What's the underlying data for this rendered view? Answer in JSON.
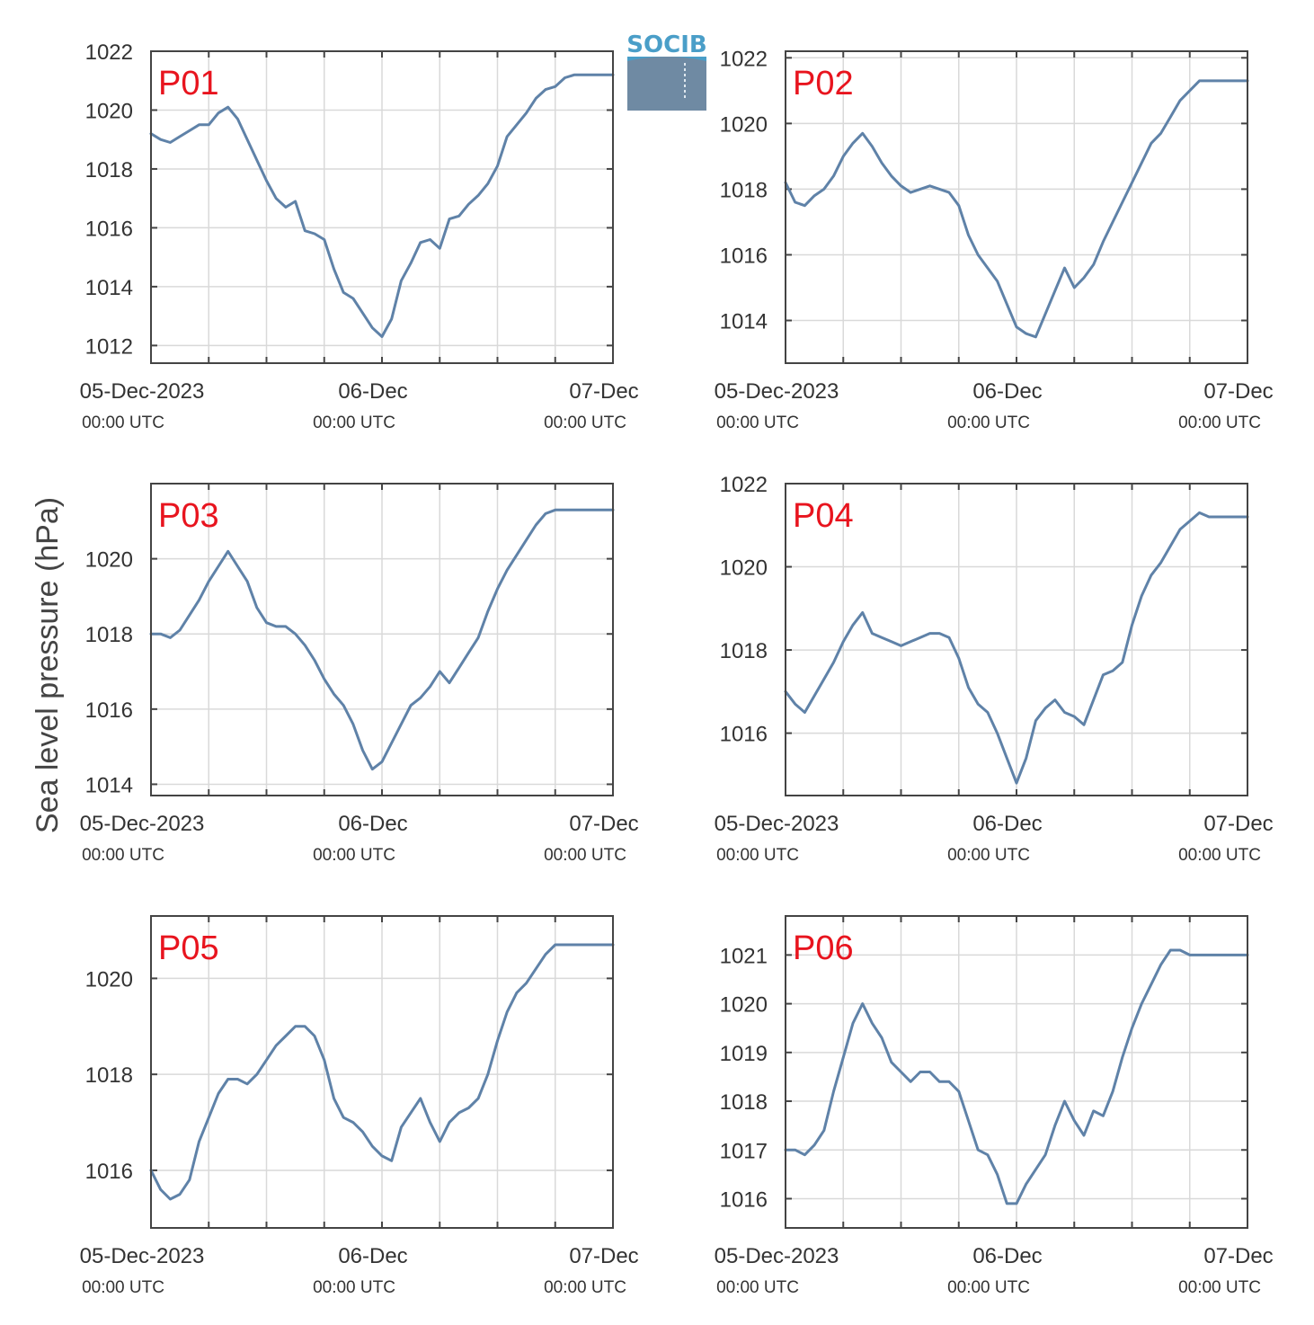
{
  "figure": {
    "ylabel": "Sea level pressure (hPa)",
    "logo_text": "SOCIB",
    "x_tick_labels": [
      "05-Dec-2023",
      "06-Dec",
      "07-Dec"
    ],
    "x_tick_sublabels": [
      "00:00 UTC",
      "00:00 UTC",
      "00:00 UTC"
    ]
  },
  "colors": {
    "line": "#5f82a8",
    "panel_label": "#e8141e",
    "grid": "#d9d9d9",
    "axis": "#444444",
    "logo_text": "#4a9ec8"
  },
  "chart_data": [
    {
      "type": "line",
      "name": "P01",
      "xlim": [
        0,
        48
      ],
      "ylim": [
        1011.4,
        1022
      ],
      "yticks": [
        1012,
        1014,
        1016,
        1018,
        1020,
        1022
      ],
      "x": [
        0,
        1,
        2,
        3,
        4,
        5,
        6,
        7,
        8,
        9,
        10,
        11,
        12,
        13,
        14,
        15,
        16,
        17,
        18,
        19,
        20,
        21,
        22,
        23,
        24,
        25,
        26,
        27,
        28,
        29,
        30,
        31,
        32,
        33,
        34,
        35,
        36,
        37,
        38,
        39,
        40,
        41,
        42,
        43,
        44,
        45,
        46,
        47,
        48
      ],
      "values": [
        1019.2,
        1019.0,
        1018.9,
        1019.1,
        1019.3,
        1019.5,
        1019.5,
        1019.9,
        1020.1,
        1019.7,
        1019.0,
        1018.3,
        1017.6,
        1017.0,
        1016.7,
        1016.9,
        1015.9,
        1015.8,
        1015.6,
        1014.6,
        1013.8,
        1013.6,
        1013.1,
        1012.6,
        1012.3,
        1012.9,
        1014.2,
        1014.8,
        1015.5,
        1015.6,
        1015.3,
        1016.3,
        1016.4,
        1016.8,
        1017.1,
        1017.5,
        1018.1,
        1019.1,
        1019.5,
        1019.9,
        1020.4,
        1020.7,
        1020.8,
        1021.1,
        1021.2,
        1021.2,
        1021.2,
        1021.2,
        1021.2
      ]
    },
    {
      "type": "line",
      "name": "P02",
      "xlim": [
        0,
        48
      ],
      "ylim": [
        1012.7,
        1022.2
      ],
      "yticks": [
        1014,
        1016,
        1018,
        1020,
        1022
      ],
      "x": [
        0,
        1,
        2,
        3,
        4,
        5,
        6,
        7,
        8,
        9,
        10,
        11,
        12,
        13,
        14,
        15,
        16,
        17,
        18,
        19,
        20,
        21,
        22,
        23,
        24,
        25,
        26,
        27,
        28,
        29,
        30,
        31,
        32,
        33,
        34,
        35,
        36,
        37,
        38,
        39,
        40,
        41,
        42,
        43,
        44,
        45,
        46,
        47,
        48
      ],
      "values": [
        1018.2,
        1017.6,
        1017.5,
        1017.8,
        1018.0,
        1018.4,
        1019.0,
        1019.4,
        1019.7,
        1019.3,
        1018.8,
        1018.4,
        1018.1,
        1017.9,
        1018.0,
        1018.1,
        1018.0,
        1017.9,
        1017.5,
        1016.6,
        1016.0,
        1015.6,
        1015.2,
        1014.5,
        1013.8,
        1013.6,
        1013.5,
        1014.2,
        1014.9,
        1015.6,
        1015.0,
        1015.3,
        1015.7,
        1016.4,
        1017.0,
        1017.6,
        1018.2,
        1018.8,
        1019.4,
        1019.7,
        1020.2,
        1020.7,
        1021.0,
        1021.3,
        1021.3,
        1021.3,
        1021.3,
        1021.3,
        1021.3
      ]
    },
    {
      "type": "line",
      "name": "P03",
      "xlim": [
        0,
        48
      ],
      "ylim": [
        1013.7,
        1022
      ],
      "yticks": [
        1014,
        1016,
        1018,
        1020
      ],
      "x": [
        0,
        1,
        2,
        3,
        4,
        5,
        6,
        7,
        8,
        9,
        10,
        11,
        12,
        13,
        14,
        15,
        16,
        17,
        18,
        19,
        20,
        21,
        22,
        23,
        24,
        25,
        26,
        27,
        28,
        29,
        30,
        31,
        32,
        33,
        34,
        35,
        36,
        37,
        38,
        39,
        40,
        41,
        42,
        43,
        44,
        45,
        46,
        47,
        48
      ],
      "values": [
        1018.0,
        1018.0,
        1017.9,
        1018.1,
        1018.5,
        1018.9,
        1019.4,
        1019.8,
        1020.2,
        1019.8,
        1019.4,
        1018.7,
        1018.3,
        1018.2,
        1018.2,
        1018.0,
        1017.7,
        1017.3,
        1016.8,
        1016.4,
        1016.1,
        1015.6,
        1014.9,
        1014.4,
        1014.6,
        1015.1,
        1015.6,
        1016.1,
        1016.3,
        1016.6,
        1017.0,
        1016.7,
        1017.1,
        1017.5,
        1017.9,
        1018.6,
        1019.2,
        1019.7,
        1020.1,
        1020.5,
        1020.9,
        1021.2,
        1021.3,
        1021.3,
        1021.3,
        1021.3,
        1021.3,
        1021.3,
        1021.3
      ]
    },
    {
      "type": "line",
      "name": "P04",
      "xlim": [
        0,
        48
      ],
      "ylim": [
        1014.5,
        1022
      ],
      "yticks": [
        1016,
        1018,
        1020,
        1022
      ],
      "x": [
        0,
        1,
        2,
        3,
        4,
        5,
        6,
        7,
        8,
        9,
        10,
        11,
        12,
        13,
        14,
        15,
        16,
        17,
        18,
        19,
        20,
        21,
        22,
        23,
        24,
        25,
        26,
        27,
        28,
        29,
        30,
        31,
        32,
        33,
        34,
        35,
        36,
        37,
        38,
        39,
        40,
        41,
        42,
        43,
        44,
        45,
        46,
        47,
        48
      ],
      "values": [
        1017.0,
        1016.7,
        1016.5,
        1016.9,
        1017.3,
        1017.7,
        1018.2,
        1018.6,
        1018.9,
        1018.4,
        1018.3,
        1018.2,
        1018.1,
        1018.2,
        1018.3,
        1018.4,
        1018.4,
        1018.3,
        1017.8,
        1017.1,
        1016.7,
        1016.5,
        1016.0,
        1015.4,
        1014.8,
        1015.4,
        1016.3,
        1016.6,
        1016.8,
        1016.5,
        1016.4,
        1016.2,
        1016.8,
        1017.4,
        1017.5,
        1017.7,
        1018.6,
        1019.3,
        1019.8,
        1020.1,
        1020.5,
        1020.9,
        1021.1,
        1021.3,
        1021.2,
        1021.2,
        1021.2,
        1021.2,
        1021.2
      ]
    },
    {
      "type": "line",
      "name": "P05",
      "xlim": [
        0,
        48
      ],
      "ylim": [
        1014.8,
        1021.3
      ],
      "yticks": [
        1016,
        1018,
        1020
      ],
      "x": [
        0,
        1,
        2,
        3,
        4,
        5,
        6,
        7,
        8,
        9,
        10,
        11,
        12,
        13,
        14,
        15,
        16,
        17,
        18,
        19,
        20,
        21,
        22,
        23,
        24,
        25,
        26,
        27,
        28,
        29,
        30,
        31,
        32,
        33,
        34,
        35,
        36,
        37,
        38,
        39,
        40,
        41,
        42,
        43,
        44,
        45,
        46,
        47,
        48
      ],
      "values": [
        1016.0,
        1015.6,
        1015.4,
        1015.5,
        1015.8,
        1016.6,
        1017.1,
        1017.6,
        1017.9,
        1017.9,
        1017.8,
        1018.0,
        1018.3,
        1018.6,
        1018.8,
        1019.0,
        1019.0,
        1018.8,
        1018.3,
        1017.5,
        1017.1,
        1017.0,
        1016.8,
        1016.5,
        1016.3,
        1016.2,
        1016.9,
        1017.2,
        1017.5,
        1017.0,
        1016.6,
        1017.0,
        1017.2,
        1017.3,
        1017.5,
        1018.0,
        1018.7,
        1019.3,
        1019.7,
        1019.9,
        1020.2,
        1020.5,
        1020.7,
        1020.7,
        1020.7,
        1020.7,
        1020.7,
        1020.7,
        1020.7
      ]
    },
    {
      "type": "line",
      "name": "P06",
      "xlim": [
        0,
        48
      ],
      "ylim": [
        1015.4,
        1021.8
      ],
      "yticks": [
        1016,
        1017,
        1018,
        1019,
        1020,
        1021
      ],
      "x": [
        0,
        1,
        2,
        3,
        4,
        5,
        6,
        7,
        8,
        9,
        10,
        11,
        12,
        13,
        14,
        15,
        16,
        17,
        18,
        19,
        20,
        21,
        22,
        23,
        24,
        25,
        26,
        27,
        28,
        29,
        30,
        31,
        32,
        33,
        34,
        35,
        36,
        37,
        38,
        39,
        40,
        41,
        42,
        43,
        44,
        45,
        46,
        47,
        48
      ],
      "values": [
        1017.0,
        1017.0,
        1016.9,
        1017.1,
        1017.4,
        1018.2,
        1018.9,
        1019.6,
        1020.0,
        1019.6,
        1019.3,
        1018.8,
        1018.6,
        1018.4,
        1018.6,
        1018.6,
        1018.4,
        1018.4,
        1018.2,
        1017.6,
        1017.0,
        1016.9,
        1016.5,
        1015.9,
        1015.9,
        1016.3,
        1016.6,
        1016.9,
        1017.5,
        1018.0,
        1017.6,
        1017.3,
        1017.8,
        1017.7,
        1018.2,
        1018.9,
        1019.5,
        1020.0,
        1020.4,
        1020.8,
        1021.1,
        1021.1,
        1021.0,
        1021.0,
        1021.0,
        1021.0,
        1021.0,
        1021.0,
        1021.0
      ]
    }
  ]
}
